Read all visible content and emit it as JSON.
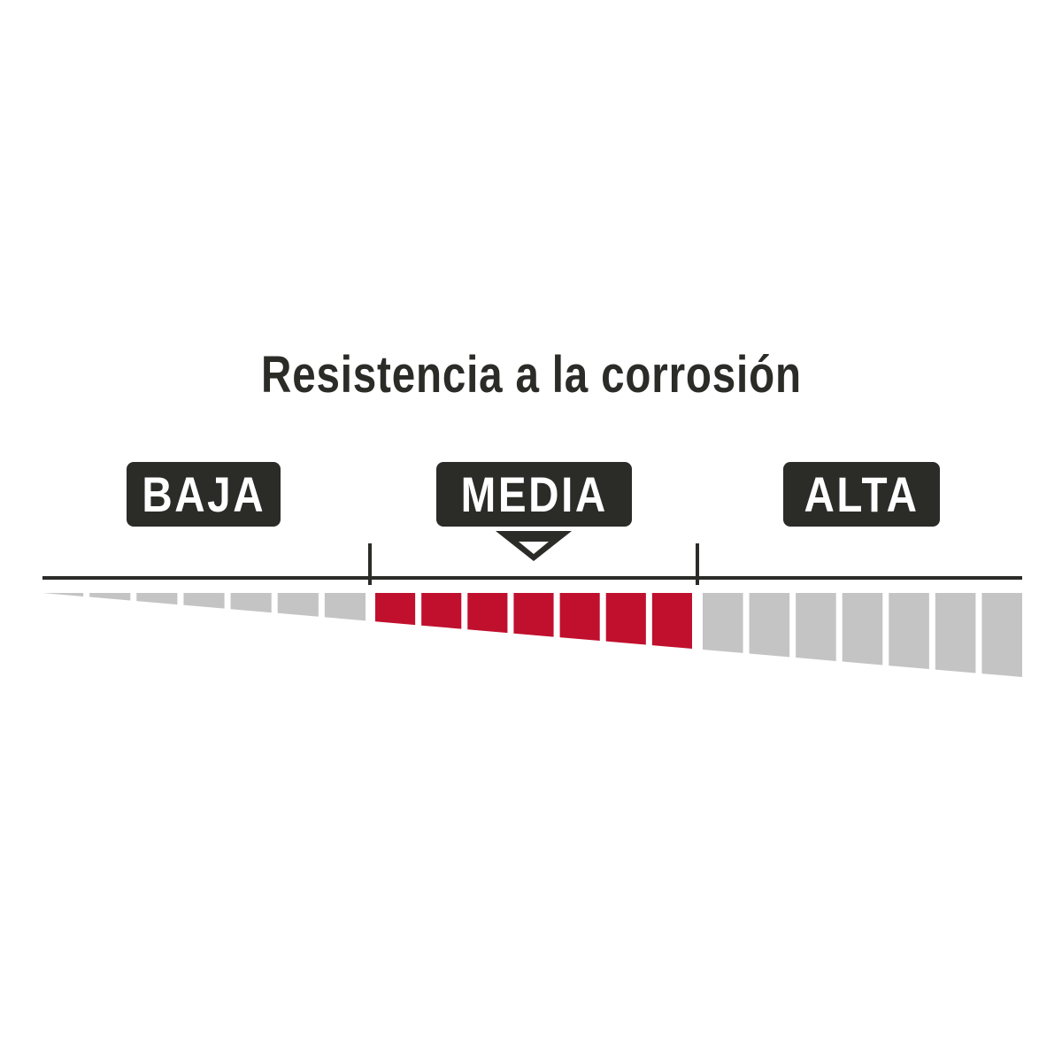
{
  "title": "Resistencia a la corrosión",
  "levels": [
    {
      "label": "BAJA",
      "segments": 7
    },
    {
      "label": "MEDIA",
      "segments": 7
    },
    {
      "label": "ALTA",
      "segments": 7
    }
  ],
  "selected_level": "MEDIA",
  "colors": {
    "dark": "#2b2b28",
    "selected": "#c0102e",
    "inactive": "#c4c4c4"
  }
}
